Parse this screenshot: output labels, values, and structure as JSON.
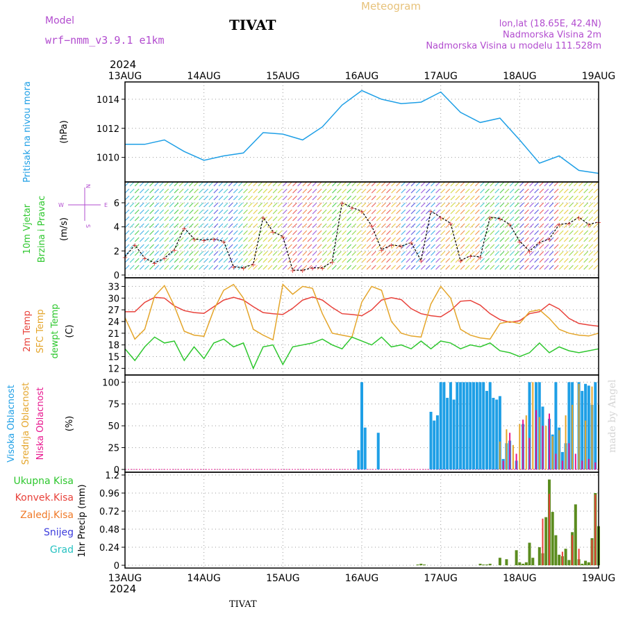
{
  "header": {
    "model_label": "Model",
    "model_name": "wrf−nmm_v3.9.1  e1km",
    "title": "TIVAT",
    "meteogram_label": "Meteogram",
    "coords": "lon,lat (18.65E, 42.4N)",
    "altitude": "Nadmorska Visina 2m",
    "model_altitude": "Nadmorska Visina u modelu 111.528m",
    "year": "2024",
    "footer_station": "TIVAT",
    "watermark": "made by Angel"
  },
  "colors": {
    "pressure": "#1e9fe6",
    "temp2m": "#e8413a",
    "sfc_temp": "#e4a52a",
    "dewpoint": "#2ec72e",
    "high_cloud": "#1e9fe6",
    "mid_cloud": "#e4a52a",
    "low_cloud": "#e8178f",
    "total_precip": "#5b8c1f",
    "conv_precip": "#e8413a",
    "frozen_precip": "#f07a28",
    "snow": "#3b3bdc",
    "hail": "#27c2c2",
    "panel_label_purple": "#b24ccf"
  },
  "chart_data": [
    {
      "type": "line",
      "panel": "pressure",
      "ylabel_left": "Pritisak na nivou mora",
      "ylabel_unit": "(hPa)",
      "x_day_ticks": [
        "13AUG",
        "14AUG",
        "15AUG",
        "16AUG",
        "17AUG",
        "18AUG",
        "19AUG"
      ],
      "ylim": [
        1008.5,
        1015.0
      ],
      "yticks": [
        1010,
        1012,
        1014
      ],
      "grid": true,
      "series": [
        {
          "values_hours": [
            0,
            6,
            12,
            18,
            24,
            30,
            36,
            42,
            48,
            54,
            60,
            66,
            72,
            78,
            84,
            90,
            96,
            102,
            108,
            114,
            120,
            126,
            132,
            138,
            144
          ],
          "values": [
            1010.9,
            1010.9,
            1011.2,
            1010.4,
            1009.8,
            1010.1,
            1010.3,
            1011.7,
            1011.6,
            1011.2,
            1012.1,
            1013.6,
            1014.6,
            1014.0,
            1013.7,
            1013.8,
            1014.5,
            1013.1,
            1012.4,
            1012.7,
            1011.2,
            1009.6,
            1010.1,
            1009.1,
            1008.9
          ]
        }
      ]
    },
    {
      "type": "line",
      "panel": "wind",
      "ylabel_left_1": "10m Vjetar",
      "ylabel_left_2": "Brzina i Pravac",
      "ylabel_unit": "(m/s)",
      "compass": {
        "n": "N",
        "s": "S",
        "w": "W",
        "e": "E"
      },
      "ylim": [
        0,
        7.5
      ],
      "yticks": [
        0,
        2,
        4,
        6
      ],
      "series": [
        {
          "name": "",
          "values_hours": [
            0,
            3,
            6,
            9,
            12,
            15,
            18,
            21,
            24,
            27,
            30,
            33,
            36,
            39,
            42,
            45,
            48,
            51,
            54,
            57,
            60,
            63,
            66,
            69,
            72,
            75,
            78,
            81,
            84,
            87,
            90,
            93,
            96,
            99,
            102,
            105,
            108,
            111,
            114,
            117,
            120,
            123,
            126,
            129,
            132,
            135,
            138,
            141,
            144
          ],
          "values": [
            1.5,
            2.5,
            1.4,
            1.0,
            1.4,
            2.1,
            3.9,
            3.0,
            2.9,
            3.0,
            2.8,
            0.7,
            0.6,
            0.9,
            4.8,
            3.6,
            3.2,
            0.4,
            0.4,
            0.6,
            0.6,
            1.1,
            6.0,
            5.6,
            5.3,
            4.1,
            2.1,
            2.5,
            2.4,
            2.7,
            1.2,
            5.3,
            4.8,
            4.3,
            1.2,
            1.6,
            1.5,
            4.8,
            4.7,
            4.2,
            2.8,
            2.0,
            2.7,
            3.0,
            4.2,
            4.3,
            4.8,
            4.2,
            4.4
          ]
        }
      ]
    },
    {
      "type": "line",
      "panel": "temperature",
      "ylabel_left_1": "2m Temp",
      "ylabel_left_2": "SFC Temp",
      "ylabel_left_3": "dewpt Temp",
      "ylabel_unit": "(C)",
      "ylim": [
        11,
        34.5
      ],
      "yticks": [
        12,
        15,
        18,
        21,
        24,
        27,
        30,
        33
      ],
      "series": [
        {
          "name": "2m Temp",
          "values_hours": [
            0,
            3,
            6,
            9,
            12,
            15,
            18,
            21,
            24,
            27,
            30,
            33,
            36,
            39,
            42,
            45,
            48,
            51,
            54,
            57,
            60,
            63,
            66,
            69,
            72,
            75,
            78,
            81,
            84,
            87,
            90,
            93,
            96,
            99,
            102,
            105,
            108,
            111,
            114,
            117,
            120,
            123,
            126,
            129,
            132,
            135,
            138,
            141,
            144
          ],
          "values": [
            26.5,
            26.5,
            28.9,
            30.2,
            30.0,
            28.0,
            26.8,
            26.3,
            26.1,
            27.8,
            29.5,
            30.2,
            29.5,
            27.8,
            26.3,
            26.0,
            25.8,
            27.4,
            29.5,
            30.3,
            29.5,
            27.6,
            26.0,
            25.8,
            25.5,
            27.0,
            29.5,
            30.1,
            29.6,
            27.3,
            26.0,
            25.5,
            25.2,
            26.8,
            29.2,
            29.4,
            28.2,
            26.0,
            24.5,
            23.8,
            24.2,
            26.0,
            26.5,
            28.5,
            27.2,
            24.8,
            23.5,
            23.1,
            22.8
          ]
        },
        {
          "name": "SFC Temp",
          "values_hours": [
            0,
            3,
            6,
            9,
            12,
            15,
            18,
            21,
            24,
            27,
            30,
            33,
            36,
            39,
            42,
            45,
            48,
            51,
            54,
            57,
            60,
            63,
            66,
            69,
            72,
            75,
            78,
            81,
            84,
            87,
            90,
            93,
            96,
            99,
            102,
            105,
            108,
            111,
            114,
            117,
            120,
            123,
            126,
            129,
            132,
            135,
            138,
            141,
            144
          ],
          "values": [
            25.0,
            19.5,
            22.0,
            30.5,
            33.2,
            28.0,
            21.5,
            20.5,
            20.2,
            27.0,
            32.0,
            33.5,
            30.0,
            22.0,
            20.5,
            19.3,
            33.5,
            31.0,
            33.0,
            32.5,
            26.0,
            21.0,
            20.5,
            20.0,
            29.0,
            33.0,
            32.0,
            24.0,
            21.0,
            20.3,
            20.0,
            28.5,
            33.0,
            30.0,
            22.0,
            20.5,
            19.8,
            19.5,
            23.5,
            24.0,
            23.5,
            26.5,
            27.0,
            24.8,
            22.0,
            21.0,
            20.5,
            20.3,
            21.0
          ]
        },
        {
          "name": "dewpt Temp",
          "values_hours": [
            0,
            3,
            6,
            9,
            12,
            15,
            18,
            21,
            24,
            27,
            30,
            33,
            36,
            39,
            42,
            45,
            48,
            51,
            54,
            57,
            60,
            63,
            66,
            69,
            72,
            75,
            78,
            81,
            84,
            87,
            90,
            93,
            96,
            99,
            102,
            105,
            108,
            111,
            114,
            117,
            120,
            123,
            126,
            129,
            132,
            135,
            138,
            141,
            144
          ],
          "values": [
            17.0,
            14.0,
            17.5,
            20.0,
            18.5,
            19.0,
            14.0,
            17.5,
            14.5,
            18.5,
            19.5,
            17.5,
            18.5,
            12.0,
            17.5,
            18.0,
            13.0,
            17.5,
            18.0,
            18.5,
            19.5,
            18.0,
            17.0,
            20.0,
            19.0,
            18.0,
            20.0,
            17.5,
            18.0,
            17.0,
            19.0,
            17.0,
            19.0,
            18.5,
            17.0,
            18.0,
            17.5,
            18.5,
            16.5,
            16.0,
            15.0,
            16.0,
            18.5,
            16.0,
            17.5,
            16.5,
            16.0,
            16.5,
            17.0
          ]
        }
      ]
    },
    {
      "type": "bar",
      "panel": "cloud",
      "ylabel_left_1": "Visoka Oblacnost",
      "ylabel_left_2": "Srednja Oblacnost",
      "ylabel_left_3": "Niska Oblacnost",
      "ylabel_unit": "(%)",
      "ylim": [
        0,
        105
      ],
      "yticks": [
        0,
        25,
        50,
        75,
        100
      ],
      "series": [
        {
          "name": "Visoka Oblacnost",
          "values_hours": [
            71,
            72,
            73,
            77,
            93,
            94,
            95,
            96,
            97,
            98,
            99,
            100,
            101,
            102,
            103,
            104,
            105,
            106,
            107,
            108,
            109,
            110,
            111,
            112,
            113,
            114,
            115,
            116,
            117,
            119,
            121,
            123,
            125,
            126,
            127,
            129,
            130,
            131,
            132,
            133,
            134,
            135,
            136,
            138,
            139,
            140,
            141,
            142,
            143
          ],
          "values": [
            22,
            100,
            48,
            42,
            66,
            56,
            62,
            100,
            100,
            82,
            100,
            80,
            100,
            100,
            100,
            100,
            100,
            100,
            100,
            100,
            100,
            90,
            100,
            82,
            80,
            84,
            12,
            30,
            33,
            10,
            52,
            100,
            100,
            100,
            72,
            58,
            40,
            100,
            48,
            20,
            30,
            100,
            100,
            100,
            90,
            98,
            96,
            74,
            100
          ]
        },
        {
          "name": "Srednja Oblacnost",
          "values_hours": [
            114,
            116,
            118,
            120,
            122,
            124,
            126,
            128,
            130,
            132,
            134,
            136,
            138,
            140,
            142,
            144
          ],
          "values": [
            32,
            46,
            28,
            52,
            62,
            100,
            60,
            50,
            38,
            45,
            62,
            74,
            98,
            56,
            95,
            74
          ]
        },
        {
          "name": "Niska Oblacnost",
          "values_hours": [
            115,
            117,
            119,
            121,
            123,
            125,
            127,
            129,
            131,
            133,
            135,
            137,
            139,
            141,
            143
          ],
          "values": [
            10,
            42,
            18,
            57,
            36,
            68,
            50,
            64,
            18,
            10,
            30,
            18,
            10,
            12,
            8
          ]
        }
      ]
    },
    {
      "type": "bar",
      "panel": "precip",
      "legend": [
        "Ukupna Kisa",
        "Konvek.Kisa",
        "Zaledj.Kisa",
        "Snijeg",
        "Grad"
      ],
      "ylabel_unit": "1hr Precip (mm)",
      "ylim": [
        0,
        1.2
      ],
      "yticks": [
        0,
        0.24,
        0.48,
        0.72,
        0.96,
        1.2
      ],
      "series": [
        {
          "name": "Ukupna Kisa",
          "values_hours": [
            89,
            90,
            91,
            108,
            109,
            110,
            111,
            114,
            116,
            119,
            120,
            121,
            122,
            123,
            124,
            126,
            127,
            128,
            129,
            130,
            131,
            132,
            133,
            134,
            135,
            136,
            137,
            138,
            139,
            140,
            141,
            142,
            143,
            144
          ],
          "values": [
            0.01,
            0.02,
            0.01,
            0.02,
            0.01,
            0.01,
            0.02,
            0.1,
            0.08,
            0.2,
            0.04,
            0.02,
            0.04,
            0.3,
            0.1,
            0.24,
            0.16,
            0.64,
            1.14,
            0.71,
            0.4,
            0.14,
            0.12,
            0.22,
            0.07,
            0.44,
            0.81,
            0.08,
            0.02,
            0.06,
            0.04,
            0.36,
            0.96,
            0.52
          ]
        },
        {
          "name": "Konvek.Kisa",
          "values_hours": [
            127,
            129,
            133,
            136,
            138,
            142,
            143
          ],
          "values": [
            0.62,
            0.95,
            0.18,
            0.4,
            0.22,
            0.34,
            0.94
          ]
        }
      ]
    }
  ]
}
